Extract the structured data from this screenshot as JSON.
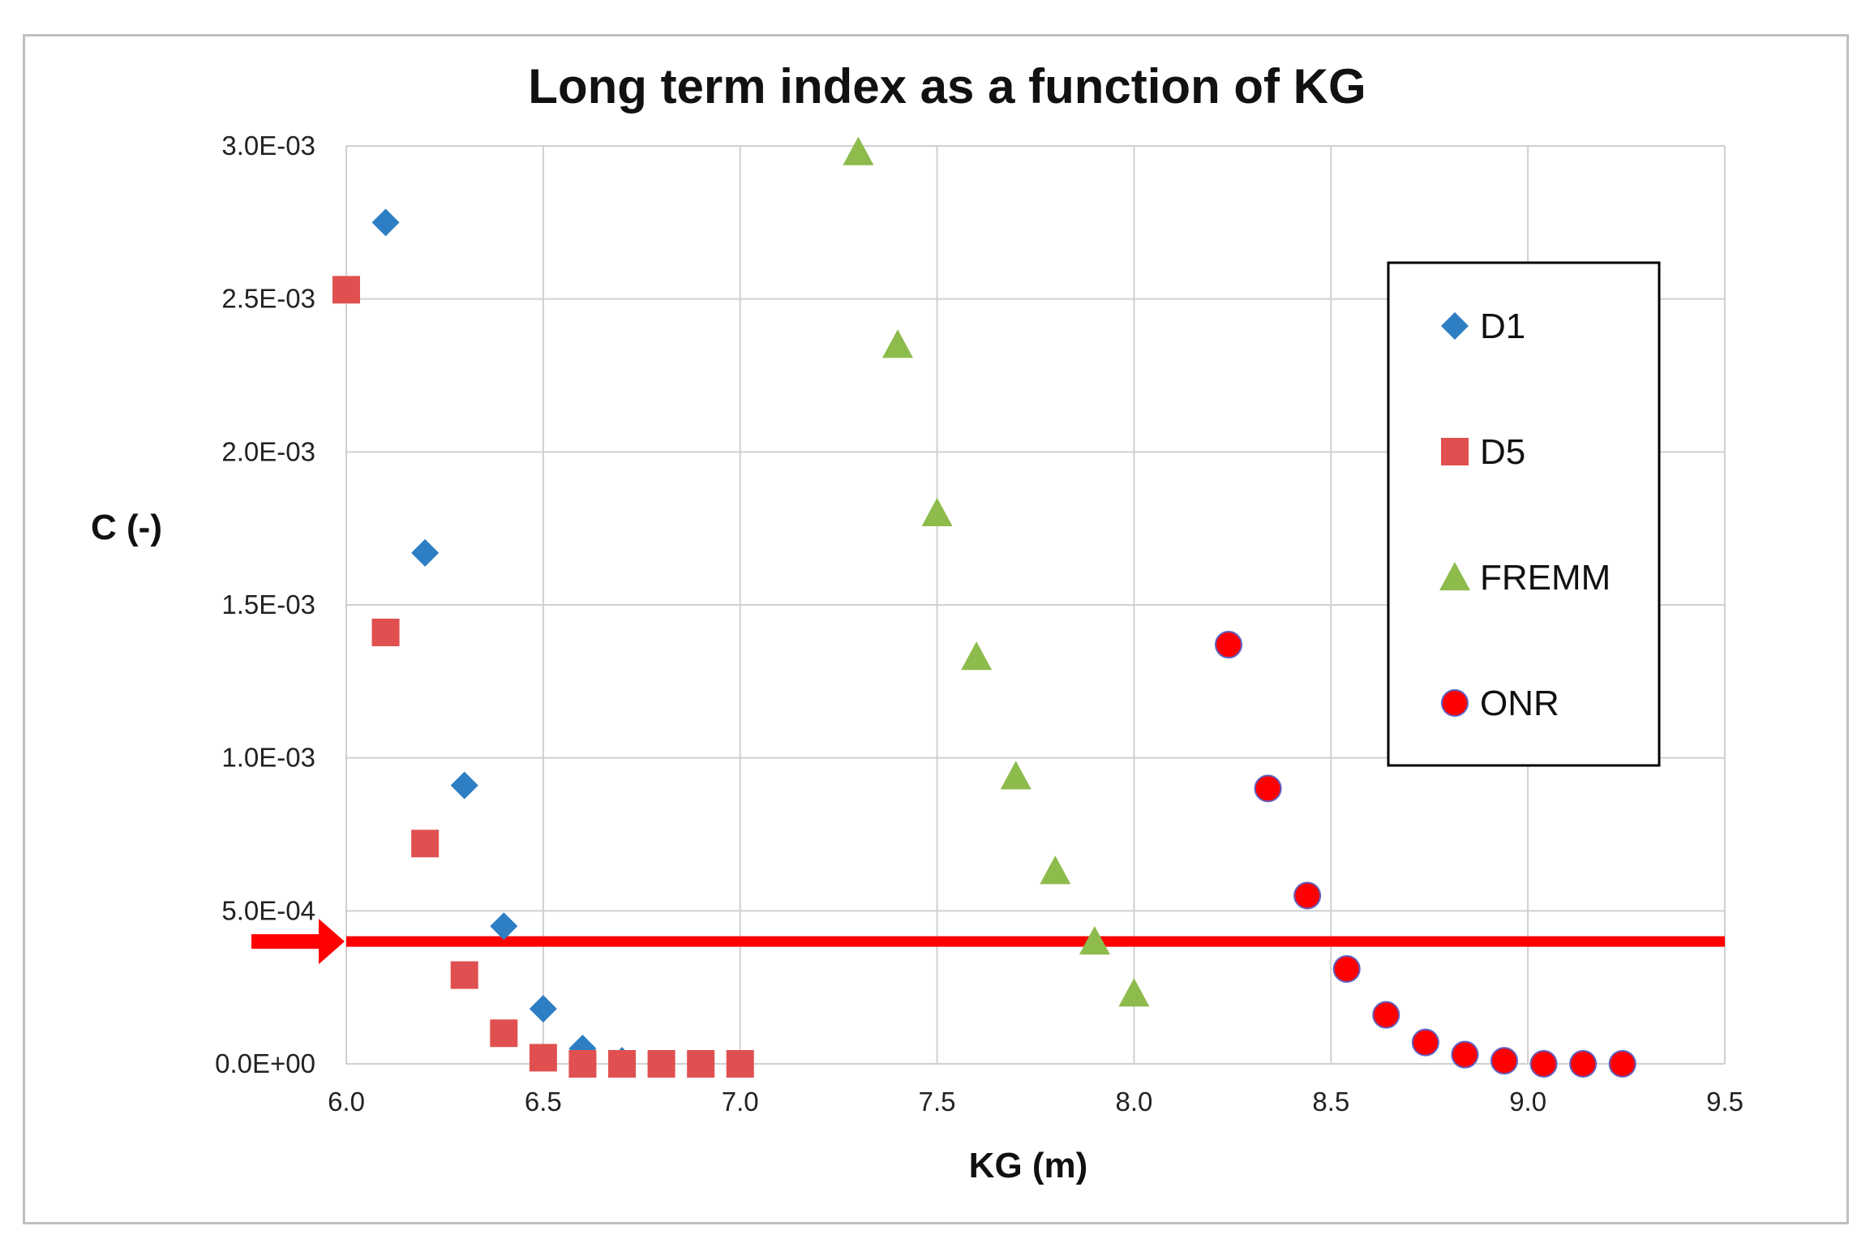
{
  "chart_data": {
    "type": "scatter",
    "title": "Long term index as a function of KG",
    "xlabel": "KG (m)",
    "ylabel": "C (-)",
    "xlim": [
      6.0,
      9.5
    ],
    "ylim": [
      0,
      0.003
    ],
    "grid": true,
    "x_ticks": [
      6.0,
      6.5,
      7.0,
      7.5,
      8.0,
      8.5,
      9.0,
      9.5
    ],
    "x_tick_labels": [
      "6.0",
      "6.5",
      "7.0",
      "7.5",
      "8.0",
      "8.5",
      "9.0",
      "9.5"
    ],
    "y_ticks": [
      0,
      0.0005,
      0.001,
      0.0015,
      0.002,
      0.0025,
      0.003
    ],
    "y_tick_labels": [
      "0.0E+00",
      "5.0E-04",
      "1.0E-03",
      "1.5E-03",
      "2.0E-03",
      "2.5E-03",
      "3.0E-03"
    ],
    "legend_position": "right",
    "reference_line": {
      "y": 0.0004,
      "color": "#ff0000",
      "arrow": true
    },
    "series": [
      {
        "name": "D1",
        "marker": "diamond",
        "color": "#2e7ec4",
        "points": [
          [
            6.1,
            0.00275
          ],
          [
            6.2,
            0.00167
          ],
          [
            6.3,
            0.00091
          ],
          [
            6.4,
            0.00045
          ],
          [
            6.5,
            0.00018
          ],
          [
            6.6,
            5e-05
          ],
          [
            6.7,
            1e-05
          ]
        ]
      },
      {
        "name": "D5",
        "marker": "square",
        "color": "#e05050",
        "points": [
          [
            6.0,
            0.00253
          ],
          [
            6.1,
            0.00141
          ],
          [
            6.2,
            0.00072
          ],
          [
            6.3,
            0.00029
          ],
          [
            6.4,
            0.0001
          ],
          [
            6.5,
            2e-05
          ],
          [
            6.6,
            0.0
          ],
          [
            6.7,
            0.0
          ],
          [
            6.8,
            0.0
          ],
          [
            6.9,
            0.0
          ],
          [
            7.0,
            0.0
          ]
        ]
      },
      {
        "name": "FREMM",
        "marker": "triangle",
        "color": "#8dbb4c",
        "points": [
          [
            7.3,
            0.00298
          ],
          [
            7.4,
            0.00235
          ],
          [
            7.5,
            0.0018
          ],
          [
            7.6,
            0.00133
          ],
          [
            7.7,
            0.00094
          ],
          [
            7.8,
            0.00063
          ],
          [
            7.9,
            0.0004
          ],
          [
            8.0,
            0.00023
          ]
        ]
      },
      {
        "name": "ONR",
        "marker": "circle",
        "color": "#ff0000",
        "stroke": "#6060c0",
        "points": [
          [
            8.24,
            0.00137
          ],
          [
            8.34,
            0.0009
          ],
          [
            8.44,
            0.00055
          ],
          [
            8.54,
            0.00031
          ],
          [
            8.64,
            0.00016
          ],
          [
            8.74,
            7e-05
          ],
          [
            8.84,
            3e-05
          ],
          [
            8.94,
            1e-05
          ],
          [
            9.04,
            0.0
          ],
          [
            9.14,
            0.0
          ],
          [
            9.24,
            0.0
          ]
        ]
      }
    ]
  }
}
